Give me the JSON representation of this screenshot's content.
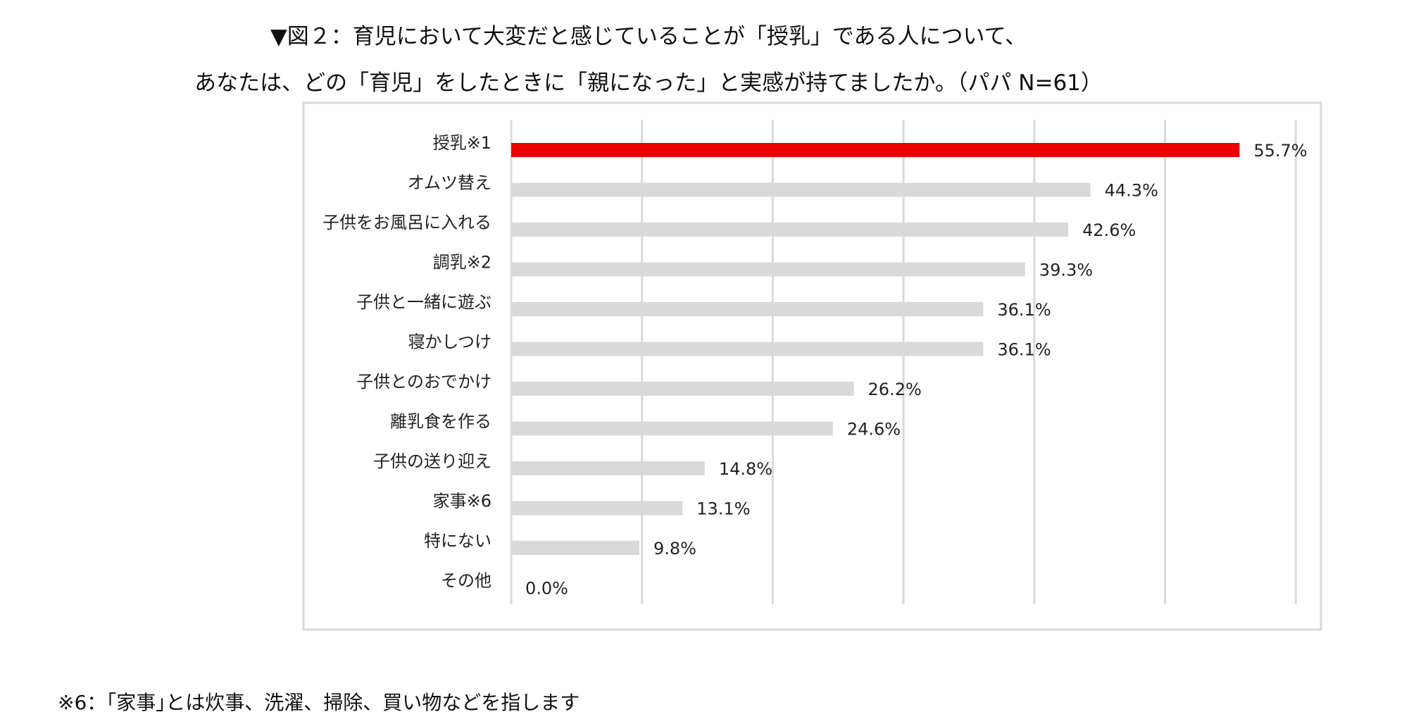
{
  "title_lines": [
    "▼図２：育児において大変だと感じていることが「授乳」である人について、",
    "あなたは、どの「育児」をしたときに「親になった」と実感が持てましたか。（パパ N=61）"
  ],
  "footnote": "※6：｢家事｣とは炊事、洗濯、掃除、買い物などを指します",
  "colors": {
    "highlight": "#ee0000",
    "bar": "#d9d9d9",
    "grid": "#d9d9d9",
    "frame": "#d9d9d9"
  },
  "chart_data": {
    "type": "bar",
    "orientation": "horizontal",
    "title": "▼図２：育児において大変だと感じていることが「授乳」である人について、あなたは、どの「育児」をしたときに「親になった」と実感が持てましたか。（パパ N=61）",
    "categories": [
      "授乳※1",
      "オムツ替え",
      "子供をお風呂に入れる",
      "調乳※2",
      "子供と一緒に遊ぶ",
      "寝かしつけ",
      "子供とのおでかけ",
      "離乳食を作る",
      "子供の送り迎え",
      "家事※6",
      "特にない",
      "その他"
    ],
    "values": [
      55.7,
      44.3,
      42.6,
      39.3,
      36.1,
      36.1,
      26.2,
      24.6,
      14.8,
      13.1,
      9.8,
      0.0
    ],
    "value_labels": [
      "55.7%",
      "44.3%",
      "42.6%",
      "39.3%",
      "36.1%",
      "36.1%",
      "26.2%",
      "24.6%",
      "14.8%",
      "13.1%",
      "9.8%",
      "0.0%"
    ],
    "highlight_index": 0,
    "xlim": [
      0,
      60
    ],
    "grid_interval": 10,
    "grid": true,
    "legend": "none",
    "xlabel": "",
    "ylabel": ""
  }
}
